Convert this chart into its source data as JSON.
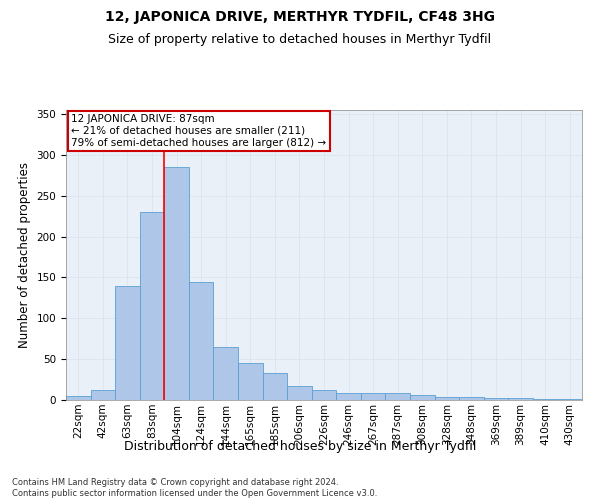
{
  "title1": "12, JAPONICA DRIVE, MERTHYR TYDFIL, CF48 3HG",
  "title2": "Size of property relative to detached houses in Merthyr Tydfil",
  "xlabel": "Distribution of detached houses by size in Merthyr Tydfil",
  "ylabel": "Number of detached properties",
  "footer1": "Contains HM Land Registry data © Crown copyright and database right 2024.",
  "footer2": "Contains public sector information licensed under the Open Government Licence v3.0.",
  "categories": [
    "22sqm",
    "42sqm",
    "63sqm",
    "83sqm",
    "104sqm",
    "124sqm",
    "144sqm",
    "165sqm",
    "185sqm",
    "206sqm",
    "226sqm",
    "246sqm",
    "267sqm",
    "287sqm",
    "308sqm",
    "328sqm",
    "348sqm",
    "369sqm",
    "389sqm",
    "410sqm",
    "430sqm"
  ],
  "values": [
    5,
    12,
    140,
    230,
    285,
    145,
    65,
    45,
    33,
    17,
    12,
    8,
    9,
    8,
    6,
    4,
    4,
    3,
    2,
    1,
    1
  ],
  "bar_color": "#aec6e8",
  "bar_edge_color": "#5a9fd4",
  "grid_color": "#dde6f0",
  "background_color": "#eaf0f8",
  "annotation_box_color": "#ffffff",
  "annotation_border_color": "#cc0000",
  "red_line_x": 3.5,
  "annotation_text_line1": "12 JAPONICA DRIVE: 87sqm",
  "annotation_text_line2": "← 21% of detached houses are smaller (211)",
  "annotation_text_line3": "79% of semi-detached houses are larger (812) →",
  "ylim": [
    0,
    355
  ],
  "yticks": [
    0,
    50,
    100,
    150,
    200,
    250,
    300,
    350
  ],
  "title1_fontsize": 10,
  "title2_fontsize": 9,
  "xlabel_fontsize": 9,
  "ylabel_fontsize": 8.5,
  "tick_fontsize": 7.5,
  "ann_fontsize": 7.5,
  "footer_fontsize": 6
}
